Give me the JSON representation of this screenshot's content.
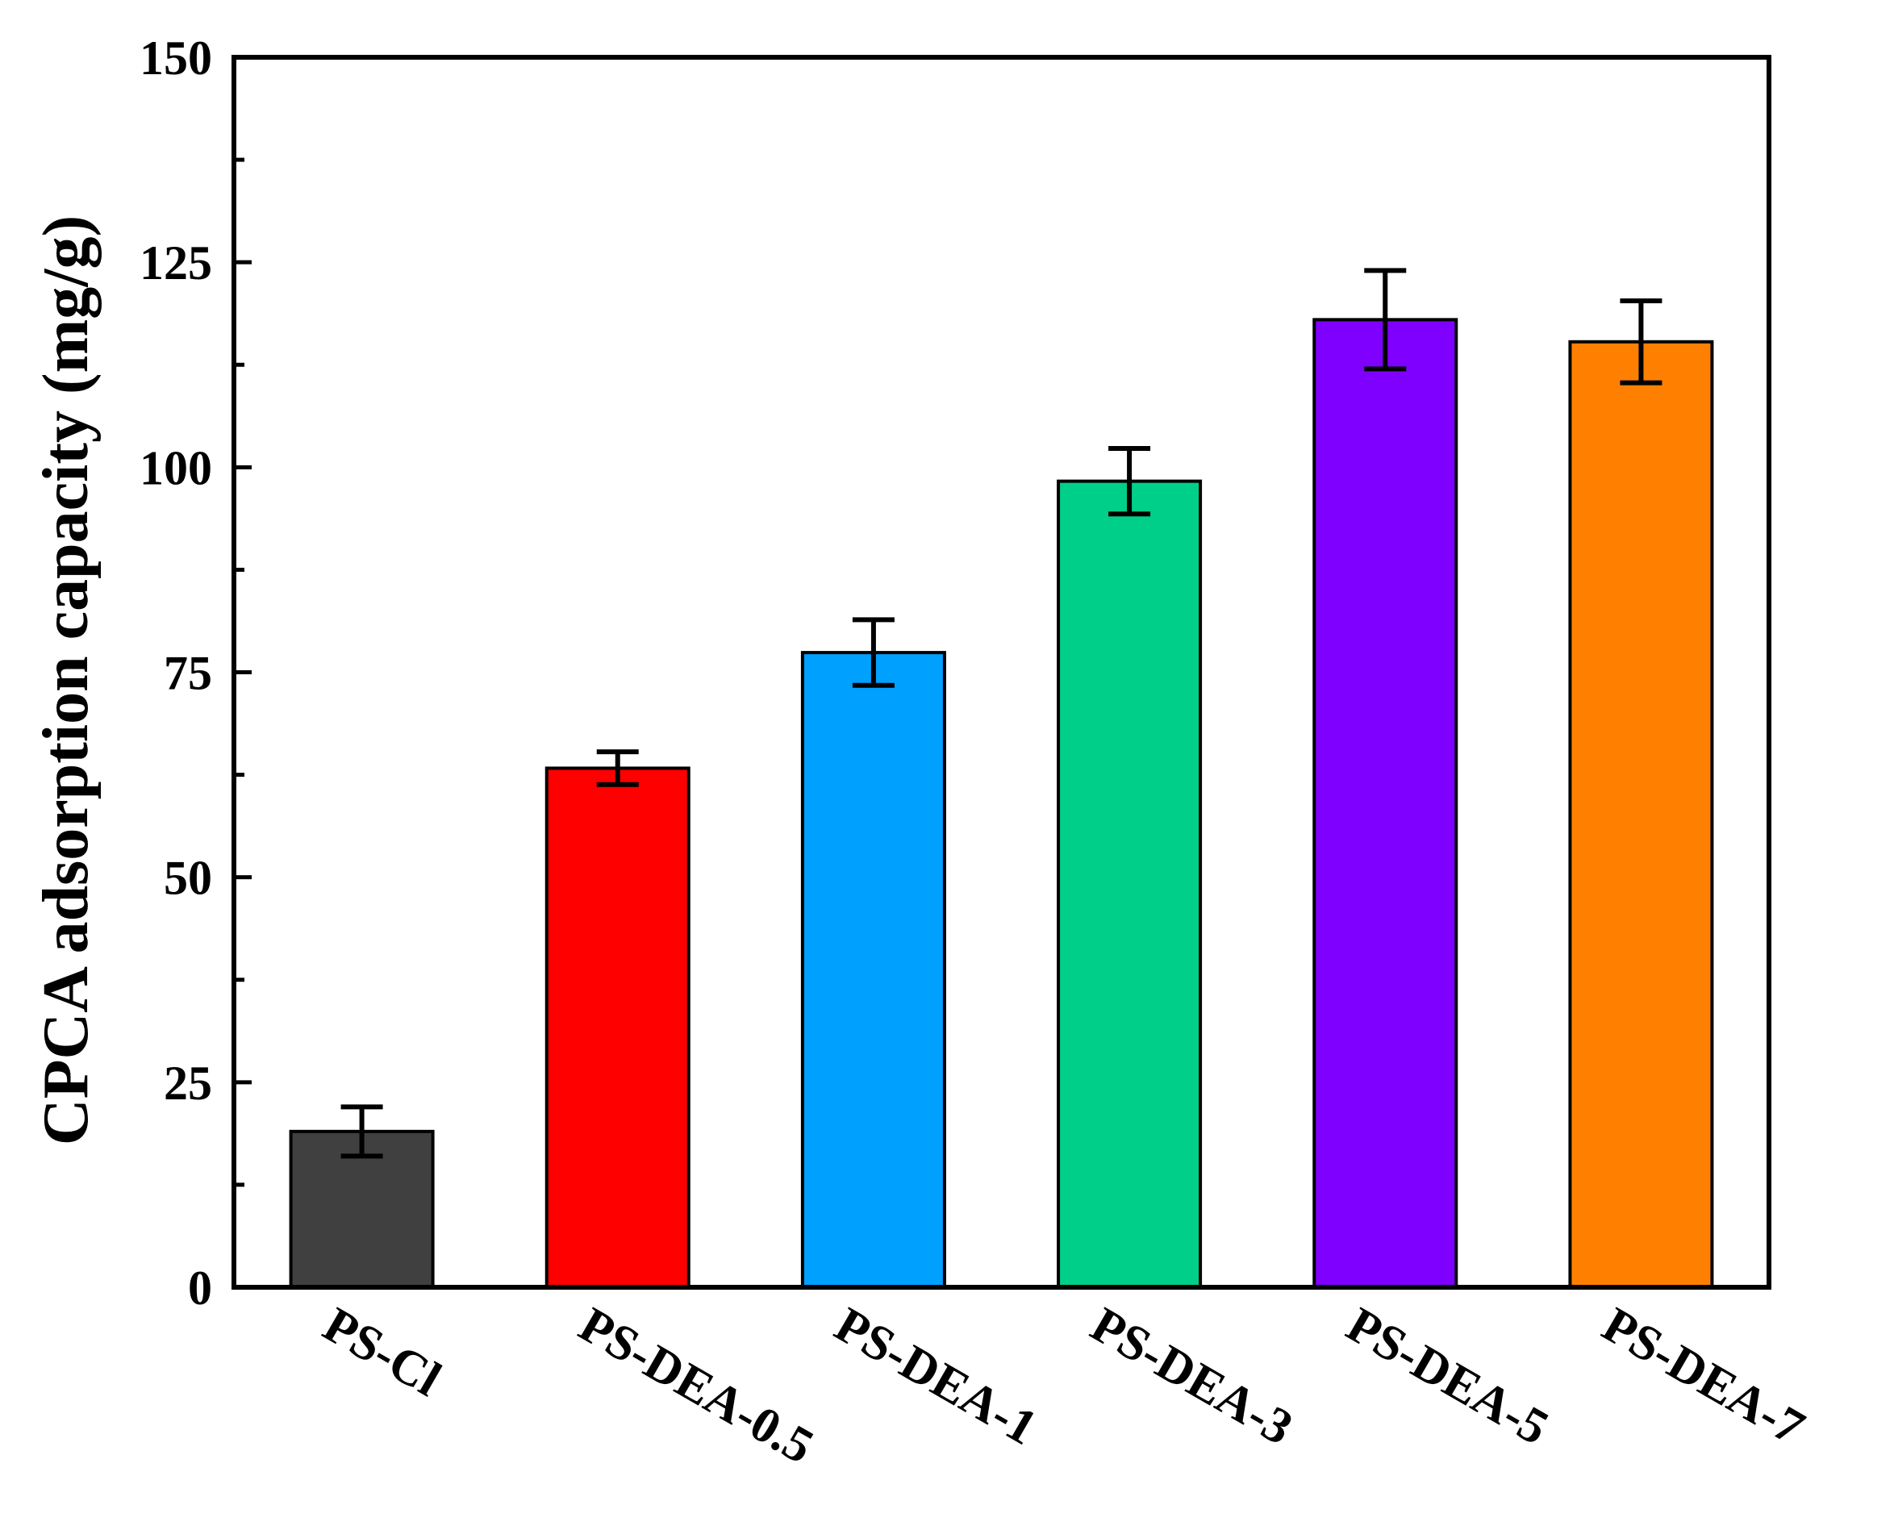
{
  "chart_data": {
    "type": "bar",
    "title": "",
    "xlabel": "",
    "ylabel": "CPCA adsorption capacity (mg/g)",
    "ylim": [
      0,
      150
    ],
    "yticks": [
      0,
      25,
      50,
      75,
      100,
      125,
      150
    ],
    "ytick_labels": [
      "0",
      "25",
      "50",
      "75",
      "100",
      "125",
      "150"
    ],
    "y_minor_step": 12.5,
    "grid": false,
    "legend": "none",
    "categories": [
      "PS-Cl",
      "PS-DEA-0.5",
      "PS-DEA-1",
      "PS-DEA-3",
      "PS-DEA-5",
      "PS-DEA-7"
    ],
    "values": [
      19,
      63.3,
      77.4,
      98.3,
      118,
      115.3
    ],
    "errors": [
      3,
      2,
      4,
      4,
      6,
      5
    ],
    "colors": [
      "#404040",
      "#ff0000",
      "#00a0ff",
      "#00cf8a",
      "#8000ff",
      "#ff8000"
    ]
  }
}
